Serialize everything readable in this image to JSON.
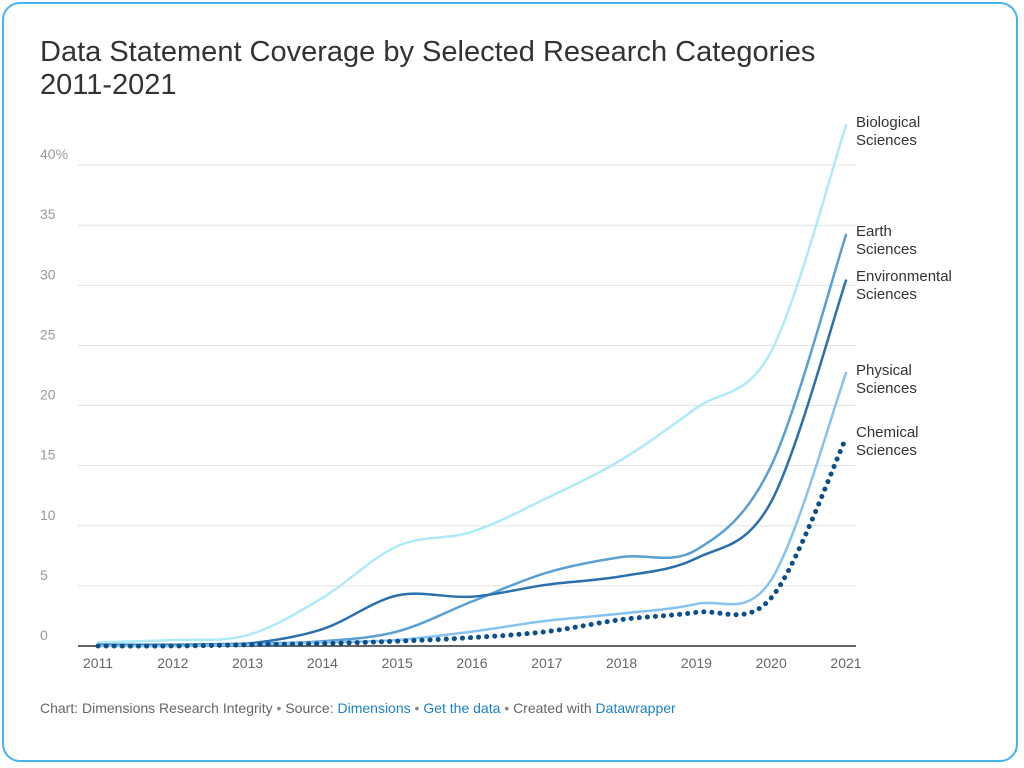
{
  "chart_data": {
    "type": "line",
    "title": "Data Statement Coverage by Selected Research Categories",
    "subtitle": "2011-2021",
    "xlabel": "",
    "ylabel": "",
    "x": [
      2011,
      2012,
      2013,
      2014,
      2015,
      2016,
      2017,
      2018,
      2019,
      2020,
      2021
    ],
    "x_ticks": [
      "2011",
      "2012",
      "2013",
      "2014",
      "2015",
      "2016",
      "2017",
      "2018",
      "2019",
      "2020",
      "2021"
    ],
    "ylim": [
      0,
      45
    ],
    "y_ticks": [
      {
        "value": 0,
        "label": "0"
      },
      {
        "value": 5,
        "label": "5"
      },
      {
        "value": 10,
        "label": "10"
      },
      {
        "value": 15,
        "label": "15"
      },
      {
        "value": 20,
        "label": "20"
      },
      {
        "value": 25,
        "label": "25"
      },
      {
        "value": 30,
        "label": "30"
      },
      {
        "value": 35,
        "label": "35"
      },
      {
        "value": 40,
        "label": "40%"
      }
    ],
    "grid": true,
    "legend": "direct labels at line ends (right)",
    "series": [
      {
        "name": "Biological Sciences",
        "label_lines": [
          "Biological",
          "Sciences"
        ],
        "color": "#aeeafa",
        "style": "solid",
        "values": [
          0.3,
          0.5,
          0.9,
          4.0,
          8.3,
          9.5,
          12.3,
          15.5,
          19.8,
          24.5,
          43.3
        ]
      },
      {
        "name": "Earth Sciences",
        "label_lines": [
          "Earth",
          "Sciences"
        ],
        "color": "#5a9fd4",
        "style": "solid",
        "values": [
          0.1,
          0.1,
          0.2,
          0.4,
          1.2,
          3.7,
          6.1,
          7.4,
          8.0,
          15.0,
          34.2
        ]
      },
      {
        "name": "Environmental Sciences",
        "label_lines": [
          "Environmental",
          "Sciences"
        ],
        "color": "#2a6fae",
        "style": "solid",
        "values": [
          0.1,
          0.1,
          0.2,
          1.4,
          4.2,
          4.1,
          5.1,
          5.8,
          7.3,
          12.0,
          30.4
        ]
      },
      {
        "name": "Physical Sciences",
        "label_lines": [
          "Physical",
          "Sciences"
        ],
        "color": "#86c3ef",
        "style": "solid",
        "values": [
          0.0,
          0.0,
          0.1,
          0.3,
          0.5,
          1.2,
          2.1,
          2.7,
          3.5,
          5.5,
          22.7
        ]
      },
      {
        "name": "Chemical Sciences",
        "label_lines": [
          "Chemical",
          "Sciences"
        ],
        "color": "#0c4f8a",
        "style": "dotted",
        "values": [
          0.0,
          0.0,
          0.1,
          0.2,
          0.4,
          0.7,
          1.2,
          2.2,
          2.8,
          4.0,
          17.3
        ]
      }
    ]
  },
  "footer": {
    "prefix": "Chart: Dimensions Research Integrity",
    "sep": " • ",
    "source_label": "Source: ",
    "source_link": "Dimensions",
    "get_data": "Get the data",
    "created_label": "Created with ",
    "created_link": "Datawrapper"
  }
}
